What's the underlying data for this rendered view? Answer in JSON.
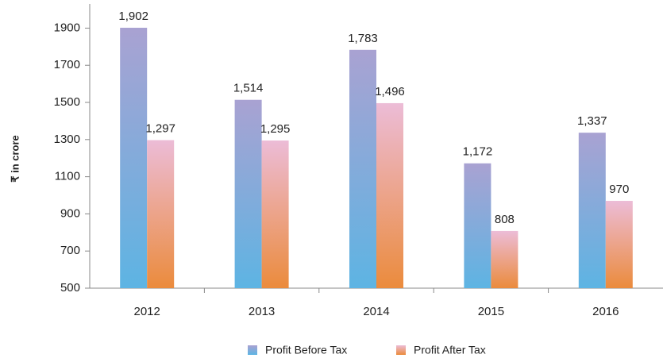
{
  "chart_data": {
    "type": "bar",
    "y_label": "₹ in crore",
    "categories": [
      "2012",
      "2013",
      "2014",
      "2015",
      "2016"
    ],
    "series": [
      {
        "name": "Profit Before Tax",
        "colors": [
          "#a9a2d2",
          "#5db4e3"
        ],
        "values": [
          1902,
          1514,
          1783,
          1172,
          1337
        ],
        "value_labels": [
          "1,902",
          "1,514",
          "1,783",
          "1,172",
          "1,337"
        ]
      },
      {
        "name": "Profit After Tax",
        "colors": [
          "#ecbcd7",
          "#eb8b3c"
        ],
        "values": [
          1297,
          1295,
          1496,
          808,
          970
        ],
        "value_labels": [
          "1,297",
          "1,295",
          "1,496",
          "808",
          "970"
        ]
      }
    ],
    "ylim": [
      500,
      2030
    ],
    "yticks": [
      500,
      700,
      900,
      1100,
      1300,
      1500,
      1700,
      1900
    ],
    "legend": "bottom"
  }
}
